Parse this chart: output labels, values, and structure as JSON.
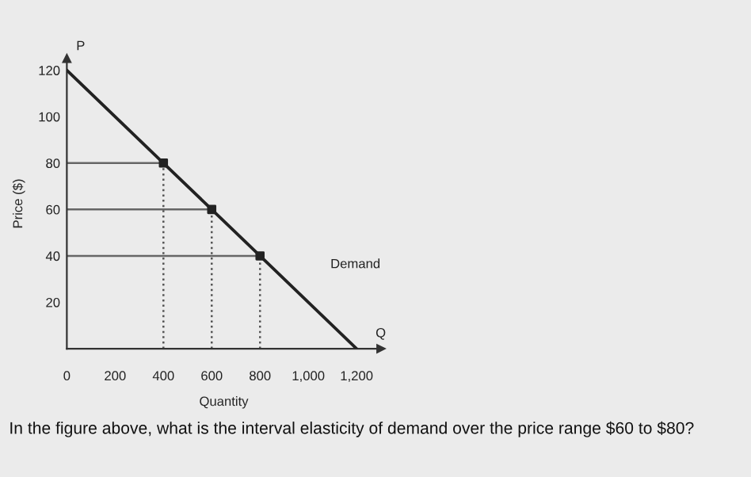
{
  "chart_data": {
    "type": "line",
    "xlabel": "Quantity",
    "ylabel": "Price ($)",
    "annotations": [
      "P",
      "Q",
      "In the figure above, what is the interval elasticity of demand over the price range $60 to $80?"
    ],
    "series": [
      {
        "name": "Demand",
        "color": "#222222",
        "x": [
          0,
          400,
          600,
          800,
          1200
        ],
        "values": [
          120,
          80,
          60,
          40,
          0
        ],
        "marker": "none",
        "line_style": "solid"
      },
      {
        "color": "#666666",
        "x": [
          0,
          400
        ],
        "values": [
          80,
          80
        ],
        "marker": "none",
        "line_style": "solid"
      },
      {
        "color": "#666666",
        "x": [
          0,
          600
        ],
        "values": [
          60,
          60
        ],
        "marker": "none",
        "line_style": "solid"
      },
      {
        "color": "#666666",
        "x": [
          0,
          800
        ],
        "values": [
          40,
          40
        ],
        "marker": "none",
        "line_style": "solid"
      },
      {
        "color": "#555555",
        "x": [
          400,
          400
        ],
        "values": [
          0,
          80
        ],
        "marker": "none",
        "line_style": "dotted"
      },
      {
        "color": "#555555",
        "x": [
          600,
          600
        ],
        "values": [
          0,
          60
        ],
        "marker": "none",
        "line_style": "dotted"
      },
      {
        "color": "#555555",
        "x": [
          800,
          800
        ],
        "values": [
          0,
          40
        ],
        "marker": "none",
        "line_style": "dotted"
      },
      {
        "type": "scatter",
        "color": "#222222",
        "x": [
          400,
          600,
          800
        ],
        "values": [
          80,
          60,
          40
        ],
        "marker": "square"
      }
    ],
    "xlim": [
      0,
      1300
    ],
    "ylim": [
      0,
      125
    ],
    "xticks": [
      0,
      200,
      400,
      600,
      800,
      {
        "value": 1000,
        "label": "1,000"
      },
      {
        "value": 1200,
        "label": "1,200"
      }
    ],
    "yticks": [
      20,
      40,
      60,
      80,
      100,
      120
    ],
    "grid": false,
    "legend": false
  }
}
